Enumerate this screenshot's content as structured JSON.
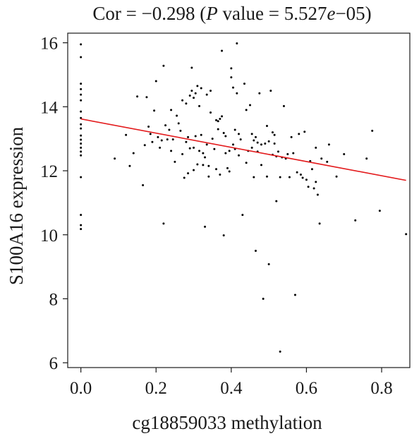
{
  "chart_data": {
    "type": "scatter",
    "title": {
      "prefix": "Cor = −0.298 (",
      "p_symbol": "P",
      "mid": " value = 5.527",
      "e_symbol": "e",
      "suffix": "−05)"
    },
    "xlabel": "cg18859033 methylation",
    "ylabel": "S100A16 expression",
    "xlim": [
      -0.035,
      0.875
    ],
    "ylim": [
      5.85,
      16.3
    ],
    "xticks": [
      0.0,
      0.2,
      0.4,
      0.6,
      0.8
    ],
    "xtick_labels": [
      "0.0",
      "0.2",
      "0.4",
      "0.6",
      "0.8"
    ],
    "yticks": [
      6,
      8,
      10,
      12,
      14,
      16
    ],
    "ytick_labels": [
      "6",
      "8",
      "10",
      "12",
      "14",
      "16"
    ],
    "grid": false,
    "point_color": "#000000",
    "line_color": "#e31a1c",
    "regression_line": {
      "x": [
        0.0,
        0.865
      ],
      "y": [
        13.62,
        11.7
      ]
    },
    "points": [
      [
        0.0,
        15.95
      ],
      [
        0.0,
        15.55
      ],
      [
        0.0,
        14.72
      ],
      [
        0.0,
        14.55
      ],
      [
        0.0,
        14.38
      ],
      [
        0.0,
        14.2
      ],
      [
        0.0,
        13.85
      ],
      [
        0.0,
        13.65
      ],
      [
        0.0,
        13.45
      ],
      [
        0.0,
        13.32
      ],
      [
        0.0,
        13.1
      ],
      [
        0.0,
        12.97
      ],
      [
        0.0,
        12.85
      ],
      [
        0.0,
        12.72
      ],
      [
        0.0,
        12.6
      ],
      [
        0.0,
        12.48
      ],
      [
        0.0,
        11.8
      ],
      [
        0.0,
        10.62
      ],
      [
        0.0,
        10.3
      ],
      [
        0.0,
        10.18
      ],
      [
        0.09,
        12.38
      ],
      [
        0.12,
        13.12
      ],
      [
        0.13,
        12.15
      ],
      [
        0.14,
        12.55
      ],
      [
        0.15,
        14.32
      ],
      [
        0.165,
        11.55
      ],
      [
        0.17,
        12.8
      ],
      [
        0.175,
        14.3
      ],
      [
        0.18,
        13.38
      ],
      [
        0.185,
        13.15
      ],
      [
        0.19,
        12.9
      ],
      [
        0.195,
        13.88
      ],
      [
        0.2,
        14.8
      ],
      [
        0.205,
        13.05
      ],
      [
        0.21,
        12.72
      ],
      [
        0.215,
        12.95
      ],
      [
        0.22,
        15.28
      ],
      [
        0.22,
        10.35
      ],
      [
        0.225,
        13.42
      ],
      [
        0.23,
        12.98
      ],
      [
        0.235,
        13.28
      ],
      [
        0.24,
        12.62
      ],
      [
        0.24,
        13.9
      ],
      [
        0.245,
        12.98
      ],
      [
        0.25,
        12.28
      ],
      [
        0.255,
        13.72
      ],
      [
        0.26,
        13.48
      ],
      [
        0.265,
        13.25
      ],
      [
        0.27,
        14.2
      ],
      [
        0.27,
        12.52
      ],
      [
        0.275,
        11.78
      ],
      [
        0.28,
        12.9
      ],
      [
        0.28,
        14.1
      ],
      [
        0.285,
        13.05
      ],
      [
        0.285,
        11.92
      ],
      [
        0.29,
        14.35
      ],
      [
        0.29,
        12.7
      ],
      [
        0.295,
        15.22
      ],
      [
        0.295,
        14.5
      ],
      [
        0.3,
        14.28
      ],
      [
        0.3,
        12.72
      ],
      [
        0.3,
        12.02
      ],
      [
        0.305,
        14.42
      ],
      [
        0.305,
        13.08
      ],
      [
        0.31,
        12.2
      ],
      [
        0.31,
        14.65
      ],
      [
        0.315,
        14.02
      ],
      [
        0.315,
        12.62
      ],
      [
        0.32,
        14.58
      ],
      [
        0.32,
        13.12
      ],
      [
        0.325,
        12.18
      ],
      [
        0.325,
        12.55
      ],
      [
        0.33,
        10.25
      ],
      [
        0.33,
        12.42
      ],
      [
        0.335,
        14.38
      ],
      [
        0.335,
        12.82
      ],
      [
        0.34,
        11.82
      ],
      [
        0.34,
        12.15
      ],
      [
        0.345,
        13.82
      ],
      [
        0.345,
        14.5
      ],
      [
        0.35,
        13.0
      ],
      [
        0.355,
        12.68
      ],
      [
        0.36,
        13.58
      ],
      [
        0.36,
        12.05
      ],
      [
        0.365,
        13.3
      ],
      [
        0.365,
        13.55
      ],
      [
        0.37,
        11.88
      ],
      [
        0.37,
        13.62
      ],
      [
        0.375,
        15.75
      ],
      [
        0.375,
        13.7
      ],
      [
        0.38,
        13.18
      ],
      [
        0.38,
        9.98
      ],
      [
        0.385,
        13.08
      ],
      [
        0.385,
        12.55
      ],
      [
        0.39,
        12.08
      ],
      [
        0.395,
        12.62
      ],
      [
        0.395,
        11.98
      ],
      [
        0.4,
        15.2
      ],
      [
        0.4,
        14.92
      ],
      [
        0.405,
        14.6
      ],
      [
        0.405,
        12.82
      ],
      [
        0.41,
        13.28
      ],
      [
        0.41,
        12.68
      ],
      [
        0.415,
        15.98
      ],
      [
        0.415,
        14.42
      ],
      [
        0.42,
        13.15
      ],
      [
        0.42,
        12.48
      ],
      [
        0.425,
        12.98
      ],
      [
        0.43,
        10.62
      ],
      [
        0.435,
        14.72
      ],
      [
        0.44,
        12.25
      ],
      [
        0.44,
        13.9
      ],
      [
        0.445,
        12.62
      ],
      [
        0.45,
        14.05
      ],
      [
        0.455,
        13.15
      ],
      [
        0.455,
        12.72
      ],
      [
        0.46,
        12.95
      ],
      [
        0.46,
        11.8
      ],
      [
        0.465,
        9.5
      ],
      [
        0.465,
        13.05
      ],
      [
        0.47,
        12.88
      ],
      [
        0.47,
        12.6
      ],
      [
        0.475,
        14.42
      ],
      [
        0.48,
        12.18
      ],
      [
        0.48,
        12.82
      ],
      [
        0.485,
        8.0
      ],
      [
        0.49,
        12.85
      ],
      [
        0.495,
        13.4
      ],
      [
        0.495,
        11.82
      ],
      [
        0.5,
        9.08
      ],
      [
        0.5,
        12.92
      ],
      [
        0.505,
        14.5
      ],
      [
        0.51,
        13.2
      ],
      [
        0.51,
        12.5
      ],
      [
        0.515,
        12.85
      ],
      [
        0.515,
        13.12
      ],
      [
        0.52,
        11.05
      ],
      [
        0.52,
        12.45
      ],
      [
        0.525,
        12.6
      ],
      [
        0.53,
        11.8
      ],
      [
        0.53,
        6.35
      ],
      [
        0.535,
        12.42
      ],
      [
        0.54,
        14.02
      ],
      [
        0.545,
        12.38
      ],
      [
        0.55,
        12.52
      ],
      [
        0.555,
        11.8
      ],
      [
        0.56,
        13.05
      ],
      [
        0.565,
        12.55
      ],
      [
        0.57,
        8.12
      ],
      [
        0.575,
        11.95
      ],
      [
        0.58,
        13.15
      ],
      [
        0.585,
        11.88
      ],
      [
        0.59,
        11.78
      ],
      [
        0.595,
        13.22
      ],
      [
        0.6,
        11.72
      ],
      [
        0.605,
        11.5
      ],
      [
        0.61,
        12.3
      ],
      [
        0.615,
        12.05
      ],
      [
        0.62,
        11.45
      ],
      [
        0.625,
        11.65
      ],
      [
        0.625,
        12.72
      ],
      [
        0.63,
        11.25
      ],
      [
        0.635,
        10.35
      ],
      [
        0.64,
        12.38
      ],
      [
        0.655,
        12.28
      ],
      [
        0.66,
        12.82
      ],
      [
        0.68,
        11.82
      ],
      [
        0.7,
        12.52
      ],
      [
        0.73,
        10.45
      ],
      [
        0.76,
        12.38
      ],
      [
        0.775,
        13.25
      ],
      [
        0.795,
        10.75
      ],
      [
        0.865,
        10.02
      ]
    ]
  }
}
